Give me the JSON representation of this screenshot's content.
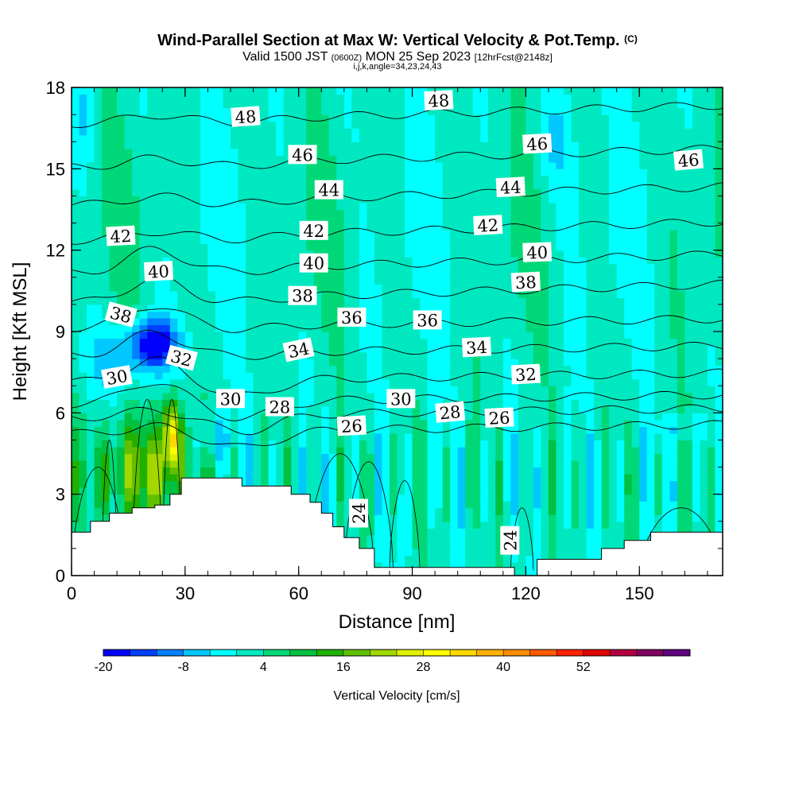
{
  "chart_data": {
    "type": "heatmap",
    "title": "Wind-Parallel Section at Max W: Vertical Velocity & Pot.Temp.",
    "title_mark": "(C)",
    "subtitle_main": "Valid 1500 JST",
    "subtitle_utc": "(0600Z)",
    "subtitle_date": "MON 25 Sep 2023",
    "subtitle_fcst": "[12hrFcst@2148z]",
    "subtitle_indices": "i,j,k,angle=34,23,24,43",
    "xlabel": "Distance [nm]",
    "ylabel": "Height [Kft MSL]",
    "colorbar_label": "Vertical Velocity [cm/s]",
    "xlim": [
      0,
      172
    ],
    "ylim": [
      0,
      18
    ],
    "x_ticks": [
      "0",
      "30",
      "60",
      "90",
      "120",
      "150"
    ],
    "x_tick_values": [
      0,
      30,
      60,
      90,
      120,
      150
    ],
    "y_ticks": [
      "0",
      "3",
      "6",
      "9",
      "12",
      "15",
      "18"
    ],
    "y_tick_values": [
      0,
      3,
      6,
      9,
      12,
      15,
      18
    ],
    "colorbar_ticks": [
      "-20",
      "-8",
      "4",
      "16",
      "28",
      "40",
      "52"
    ],
    "colorbar_tick_values": [
      -20,
      -8,
      4,
      16,
      28,
      40,
      52
    ],
    "colorbar_min": -20,
    "colorbar_step": 4,
    "colorbar_colors": [
      "#0000ff",
      "#0040ff",
      "#0080ff",
      "#00c8ff",
      "#00ffff",
      "#00e8c0",
      "#00d878",
      "#00c040",
      "#20b000",
      "#60c000",
      "#a0d800",
      "#e0f000",
      "#ffff00",
      "#ffd800",
      "#ffb000",
      "#ff8c00",
      "#ff5a00",
      "#ff2000",
      "#e00000",
      "#b00040",
      "#800060",
      "#600080"
    ],
    "terrain": [
      [
        0,
        1.6
      ],
      [
        5,
        1.6
      ],
      [
        5,
        2.0
      ],
      [
        10,
        2.0
      ],
      [
        10,
        2.3
      ],
      [
        16,
        2.3
      ],
      [
        16,
        2.5
      ],
      [
        22,
        2.5
      ],
      [
        22,
        2.6
      ],
      [
        26,
        2.6
      ],
      [
        26,
        3.0
      ],
      [
        29,
        3.0
      ],
      [
        29,
        3.6
      ],
      [
        45,
        3.6
      ],
      [
        45,
        3.3
      ],
      [
        58,
        3.3
      ],
      [
        58,
        3.0
      ],
      [
        63,
        3.0
      ],
      [
        63,
        2.7
      ],
      [
        66,
        2.7
      ],
      [
        66,
        2.3
      ],
      [
        69,
        2.3
      ],
      [
        69,
        1.8
      ],
      [
        72,
        1.8
      ],
      [
        72,
        1.4
      ],
      [
        76,
        1.4
      ],
      [
        76,
        1.0
      ],
      [
        80,
        1.0
      ],
      [
        80,
        0.3
      ],
      [
        117,
        0.3
      ],
      [
        117,
        0.0
      ],
      [
        123,
        0.0
      ],
      [
        123,
        0.6
      ],
      [
        140,
        0.6
      ],
      [
        140,
        1.0
      ],
      [
        146,
        1.0
      ],
      [
        146,
        1.3
      ],
      [
        153,
        1.3
      ],
      [
        153,
        1.6
      ],
      [
        172,
        1.6
      ]
    ],
    "theta_levels": [
      24,
      26,
      28,
      30,
      32,
      34,
      36,
      38,
      40,
      42,
      44,
      46,
      48
    ],
    "theta_labels": [
      {
        "text": "48",
        "x": 46,
        "y": 16.9,
        "rot": -4
      },
      {
        "text": "48",
        "x": 97,
        "y": 17.5,
        "rot": -3
      },
      {
        "text": "46",
        "x": 163,
        "y": 15.3,
        "rot": -5
      },
      {
        "text": "46",
        "x": 61,
        "y": 15.5,
        "rot": 0
      },
      {
        "text": "46",
        "x": 123,
        "y": 15.9,
        "rot": -3
      },
      {
        "text": "44",
        "x": 68,
        "y": 14.2,
        "rot": 0
      },
      {
        "text": "44",
        "x": 116,
        "y": 14.3,
        "rot": -3
      },
      {
        "text": "42",
        "x": 13,
        "y": 12.5,
        "rot": -3
      },
      {
        "text": "42",
        "x": 64,
        "y": 12.7,
        "rot": 0
      },
      {
        "text": "42",
        "x": 110,
        "y": 12.9,
        "rot": -3
      },
      {
        "text": "40",
        "x": 23,
        "y": 11.2,
        "rot": -3
      },
      {
        "text": "40",
        "x": 64,
        "y": 11.5,
        "rot": 0
      },
      {
        "text": "40",
        "x": 123,
        "y": 11.9,
        "rot": -2
      },
      {
        "text": "38",
        "x": 13,
        "y": 9.6,
        "rot": 15
      },
      {
        "text": "38",
        "x": 61,
        "y": 10.3,
        "rot": 0
      },
      {
        "text": "38",
        "x": 120,
        "y": 10.8,
        "rot": -3
      },
      {
        "text": "36",
        "x": 74,
        "y": 9.5,
        "rot": 0
      },
      {
        "text": "36",
        "x": 94,
        "y": 9.4,
        "rot": 0
      },
      {
        "text": "34",
        "x": 60,
        "y": 8.3,
        "rot": -12
      },
      {
        "text": "34",
        "x": 107,
        "y": 8.4,
        "rot": -3
      },
      {
        "text": "32",
        "x": 29,
        "y": 8.0,
        "rot": 15
      },
      {
        "text": "32",
        "x": 120,
        "y": 7.4,
        "rot": -3
      },
      {
        "text": "30",
        "x": 12,
        "y": 7.3,
        "rot": -10
      },
      {
        "text": "30",
        "x": 42,
        "y": 6.5,
        "rot": 0
      },
      {
        "text": "30",
        "x": 87,
        "y": 6.5,
        "rot": 0
      },
      {
        "text": "28",
        "x": 55,
        "y": 6.2,
        "rot": 0
      },
      {
        "text": "28",
        "x": 100,
        "y": 6.0,
        "rot": -5
      },
      {
        "text": "26",
        "x": 74,
        "y": 5.5,
        "rot": -3
      },
      {
        "text": "26",
        "x": 113,
        "y": 5.8,
        "rot": -3
      },
      {
        "text": "24",
        "x": 76,
        "y": 2.3,
        "rot": -90
      },
      {
        "text": "24",
        "x": 116,
        "y": 1.3,
        "rot": -90
      }
    ]
  }
}
